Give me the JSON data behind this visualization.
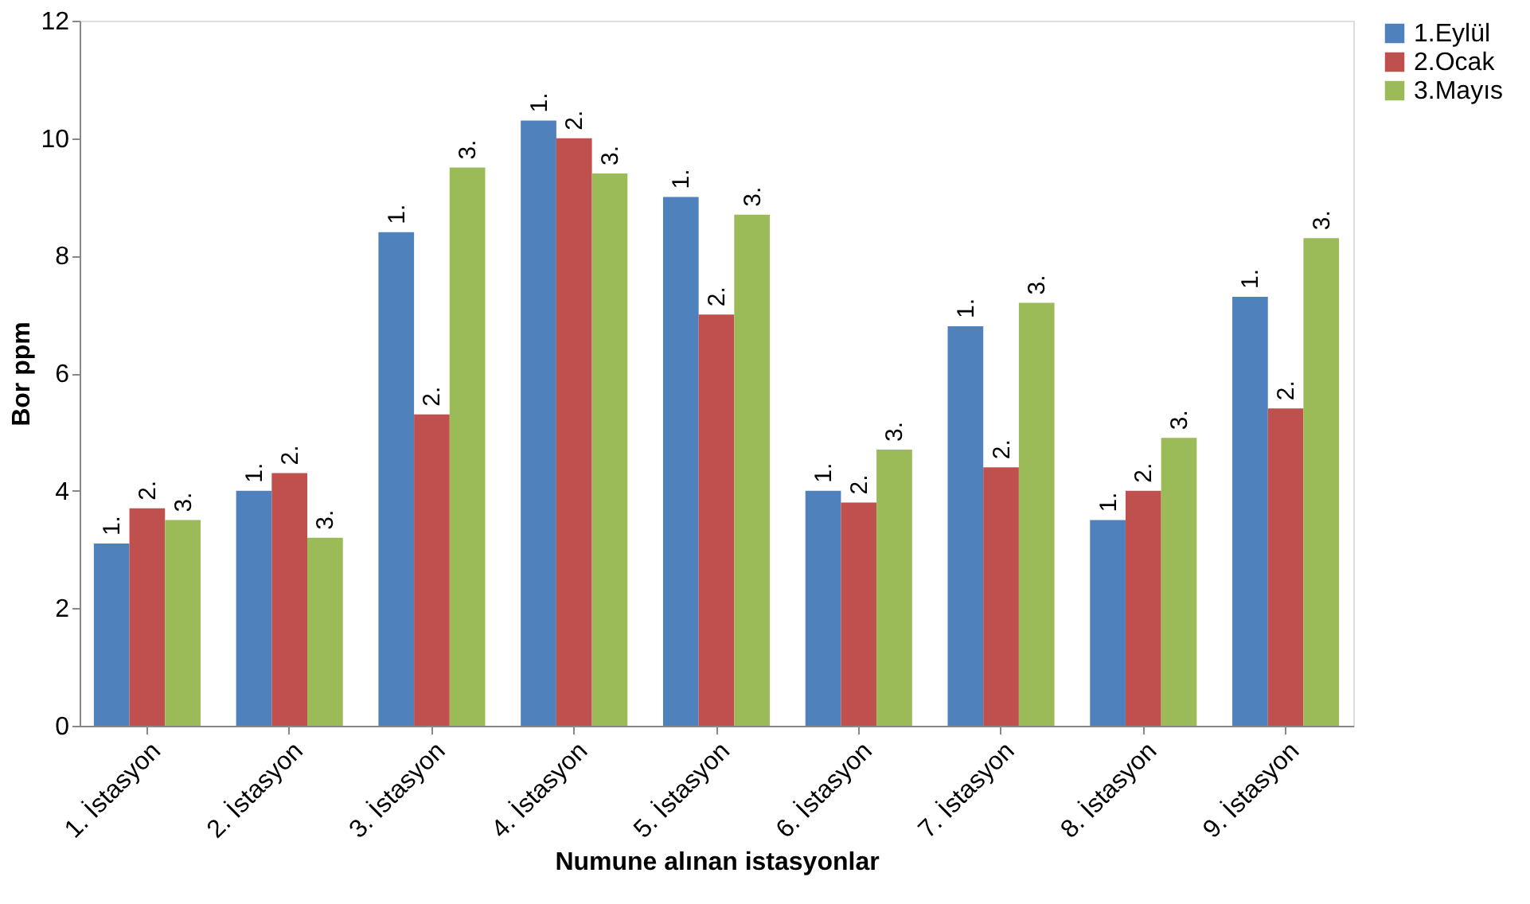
{
  "chart_data": {
    "type": "bar",
    "xlabel": "Numune alınan istasyonlar",
    "ylabel": "Bor ppm",
    "categories": [
      "1. İstasyon",
      "2. İstasyon",
      "3. İstasyon",
      "4. İstasyon",
      "5. İstasyon",
      "6. İstasyon",
      "7. İstasyon",
      "8. İstasyon",
      "9. İstasyon"
    ],
    "series": [
      {
        "name": "1.Eylül",
        "color": "#4f81bd",
        "values": [
          3.1,
          4.0,
          8.4,
          10.3,
          9.0,
          4.0,
          6.8,
          3.5,
          7.3
        ]
      },
      {
        "name": "2.Ocak",
        "color": "#c0504d",
        "values": [
          3.7,
          4.3,
          5.3,
          10.0,
          7.0,
          3.8,
          4.4,
          4.0,
          5.4
        ]
      },
      {
        "name": "3.Mayıs",
        "color": "#9bbb59",
        "values": [
          3.5,
          3.2,
          9.5,
          9.4,
          8.7,
          4.7,
          7.2,
          4.9,
          8.3
        ]
      }
    ],
    "annotations": [
      "1.",
      "2.",
      "3.",
      "1.",
      "2.",
      "3.",
      "1.",
      "2.",
      "3.",
      "1.",
      "2.",
      "3.",
      "1.",
      "2.",
      "3.",
      "1.",
      "2.",
      "3.",
      "1.",
      "2.",
      "3.",
      "1.",
      "2.",
      "3.",
      "1.",
      "2.",
      "3."
    ],
    "ylim": [
      0,
      12
    ],
    "yticks": [
      0,
      2,
      4,
      6,
      8,
      10,
      12
    ],
    "grid": false,
    "legend": "right"
  }
}
